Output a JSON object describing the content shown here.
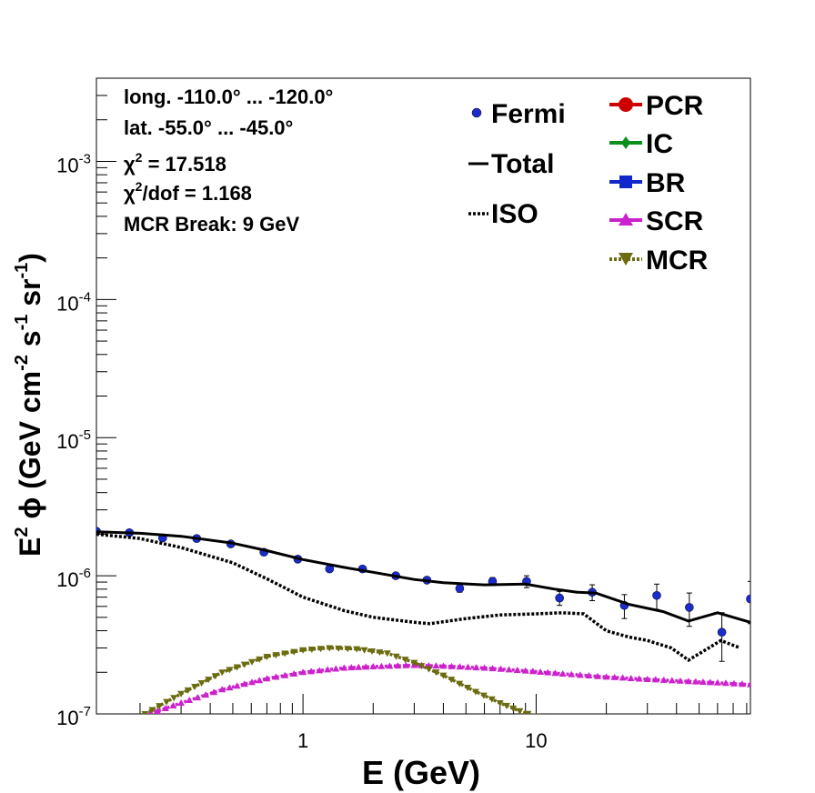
{
  "chart_data": {
    "type": "scatter",
    "xscale": "log",
    "yscale": "log",
    "xlim": [
      0.13,
      83
    ],
    "ylim": [
      1e-07,
      0.004
    ],
    "xlabel": "E (GeV)",
    "ylabel_parts": {
      "prefix": "E",
      "sup1": "2",
      "phi": "ϕ (GeV cm",
      "sup2": "-2",
      "s": " s",
      "sup3": "-1",
      "sr": " sr",
      "sup4": "-1",
      "close": ")"
    },
    "x_tick_labels": [
      {
        "value": 1,
        "label": "1"
      },
      {
        "value": 10,
        "label": "10"
      }
    ],
    "y_tick_labels": [
      {
        "value": 1e-07,
        "base": "10",
        "exp": "-7"
      },
      {
        "value": 1e-06,
        "base": "10",
        "exp": "-6"
      },
      {
        "value": 1e-05,
        "base": "10",
        "exp": "-5"
      },
      {
        "value": 0.0001,
        "base": "10",
        "exp": "-4"
      },
      {
        "value": 0.001,
        "base": "10",
        "exp": "-3"
      }
    ],
    "annotations": {
      "long": "long. -110.0° ... -120.0°",
      "lat": "lat. -55.0° ... -45.0°",
      "chi2_sym": "χ",
      "chi2_sup": "2",
      "chi2_val": " = 17.518",
      "chi2dof_sym": "χ",
      "chi2dof_sup": "2",
      "chi2dof_val": "/dof = 1.168",
      "break": "MCR Break:  9 GeV"
    },
    "legend": {
      "fermi": "Fermi",
      "total": "Total",
      "iso": "ISO",
      "pcr": "PCR",
      "ic": "IC",
      "br": "BR",
      "scr": "SCR",
      "mcr": "MCR"
    },
    "colors": {
      "fermi": "#1b2ccc",
      "total": "#000000",
      "iso": "#000000",
      "pcr": "#cc0000",
      "ic": "#0a8f1a",
      "br": "#1027c9",
      "scr": "#cc22cc",
      "mcr": "#6b6b10"
    },
    "series": [
      {
        "name": "Fermi",
        "type": "points",
        "x": [
          0.13,
          0.18,
          0.25,
          0.35,
          0.49,
          0.68,
          0.95,
          1.3,
          1.8,
          2.5,
          3.4,
          4.7,
          6.5,
          9.1,
          12.6,
          17.4,
          23.9,
          32.9,
          45.4,
          62.6,
          83
        ],
        "y": [
          2.1e-06,
          2.05e-06,
          1.88e-06,
          1.86e-06,
          1.7e-06,
          1.48e-06,
          1.32e-06,
          1.12e-06,
          1.12e-06,
          1e-06,
          9.3e-07,
          8.1e-07,
          9.1e-07,
          9.1e-07,
          6.9e-07,
          7.6e-07,
          6.1e-07,
          7.2e-07,
          5.9e-07,
          3.9e-07,
          6.8e-07
        ],
        "err": [
          0,
          0,
          0,
          0,
          0,
          0,
          0,
          0,
          0,
          0,
          0,
          5e-08,
          6e-08,
          9e-08,
          8e-08,
          1e-07,
          1.2e-07,
          1.5e-07,
          1.6e-07,
          1.5e-07,
          2.3e-07
        ]
      },
      {
        "name": "Total",
        "type": "line",
        "x": [
          0.13,
          0.2,
          0.3,
          0.5,
          0.7,
          1.0,
          1.5,
          2.0,
          3.0,
          4.0,
          6.0,
          9.0,
          12.0,
          15.0,
          18.0,
          25.0,
          35.0,
          45.0,
          60.0,
          83.0
        ],
        "y": [
          2.08e-06,
          2.03e-06,
          1.93e-06,
          1.72e-06,
          1.52e-06,
          1.31e-06,
          1.15e-06,
          1.06e-06,
          9.4e-07,
          8.9e-07,
          8.6e-07,
          8.7e-07,
          8e-07,
          7.6e-07,
          7.5e-07,
          6.2e-07,
          5.5e-07,
          4.7e-07,
          5.4e-07,
          4.6e-07
        ]
      },
      {
        "name": "ISO",
        "type": "dotted",
        "x": [
          0.13,
          0.2,
          0.3,
          0.5,
          0.7,
          1.0,
          1.5,
          2.0,
          3.0,
          3.5,
          5.0,
          7.0,
          10.0,
          13.0,
          16.0,
          20.0,
          25.0,
          30.0,
          38.0,
          45.0,
          55.0,
          62.0,
          75.0
        ],
        "y": [
          2e-06,
          1.86e-06,
          1.6e-06,
          1.24e-06,
          9.5e-07,
          7e-07,
          5.6e-07,
          5e-07,
          4.6e-07,
          4.5e-07,
          4.9e-07,
          5.2e-07,
          5.3e-07,
          5.4e-07,
          5.3e-07,
          4e-07,
          3.6e-07,
          3.4e-07,
          3e-07,
          2.45e-07,
          3e-07,
          3.4e-07,
          3e-07
        ]
      },
      {
        "name": "SCR",
        "type": "marker-line",
        "x": [
          0.22,
          0.3,
          0.45,
          0.7,
          1.0,
          1.5,
          2.0,
          3.0,
          4.0,
          6.0,
          9.0,
          13.0,
          20.0,
          30.0,
          45.0,
          60.0,
          83.0
        ],
        "y": [
          1e-07,
          1.2e-07,
          1.5e-07,
          1.8e-07,
          2e-07,
          2.15e-07,
          2.2e-07,
          2.25e-07,
          2.22e-07,
          2.15e-07,
          2.05e-07,
          1.95e-07,
          1.85e-07,
          1.78e-07,
          1.72e-07,
          1.68e-07,
          1.63e-07
        ]
      },
      {
        "name": "MCR",
        "type": "marker-line",
        "x": [
          0.21,
          0.3,
          0.45,
          0.7,
          1.0,
          1.3,
          1.7,
          2.3,
          3.0,
          4.0,
          5.5,
          7.0,
          8.5,
          10.0
        ],
        "y": [
          1e-07,
          1.4e-07,
          2e-07,
          2.6e-07,
          2.9e-07,
          3e-07,
          2.95e-07,
          2.75e-07,
          2.35e-07,
          1.9e-07,
          1.45e-07,
          1.2e-07,
          1.05e-07,
          9.6e-08
        ]
      }
    ]
  }
}
